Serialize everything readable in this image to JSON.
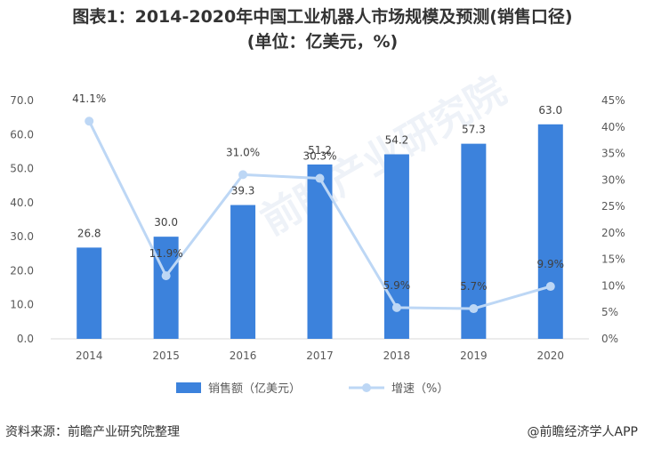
{
  "title_line1": "图表1：2014-2020年中国工业机器人市场规模及预测(销售口径)",
  "title_line2": "(单位：亿美元，%)",
  "source": "资料来源：前瞻产业研究院整理",
  "credit": "@前瞻经济学人APP",
  "watermark": "前瞻产业研究院",
  "chart_data": {
    "type": "bar",
    "categories": [
      "2014",
      "2015",
      "2016",
      "2017",
      "2018",
      "2019",
      "2020"
    ],
    "series": [
      {
        "name": "销售额（亿美元）",
        "type": "bar",
        "axis": "left",
        "color": "#3C82DC",
        "values": [
          26.8,
          30.0,
          39.3,
          51.2,
          54.2,
          57.3,
          63.0
        ],
        "labels": [
          "26.8",
          "30.0",
          "39.3",
          "51.2",
          "54.2",
          "57.3",
          "63.0"
        ]
      },
      {
        "name": "增速（%）",
        "type": "line",
        "axis": "right",
        "color": "#BDD7F5",
        "values": [
          41.1,
          11.9,
          31.0,
          30.3,
          5.9,
          5.7,
          9.9
        ],
        "labels": [
          "41.1%",
          "11.9%",
          "31.0%",
          "30.3%",
          "5.9%",
          "5.7%",
          "9.9%"
        ]
      }
    ],
    "ylim_left": [
      0,
      70
    ],
    "yticks_left": [
      "0.0",
      "10.0",
      "20.0",
      "30.0",
      "40.0",
      "50.0",
      "60.0",
      "70.0"
    ],
    "ylim_right": [
      0,
      45
    ],
    "yticks_right": [
      "0%",
      "5%",
      "10%",
      "15%",
      "20%",
      "25%",
      "30%",
      "35%",
      "40%",
      "45%"
    ],
    "grid": false,
    "legend_position": "bottom-center"
  }
}
